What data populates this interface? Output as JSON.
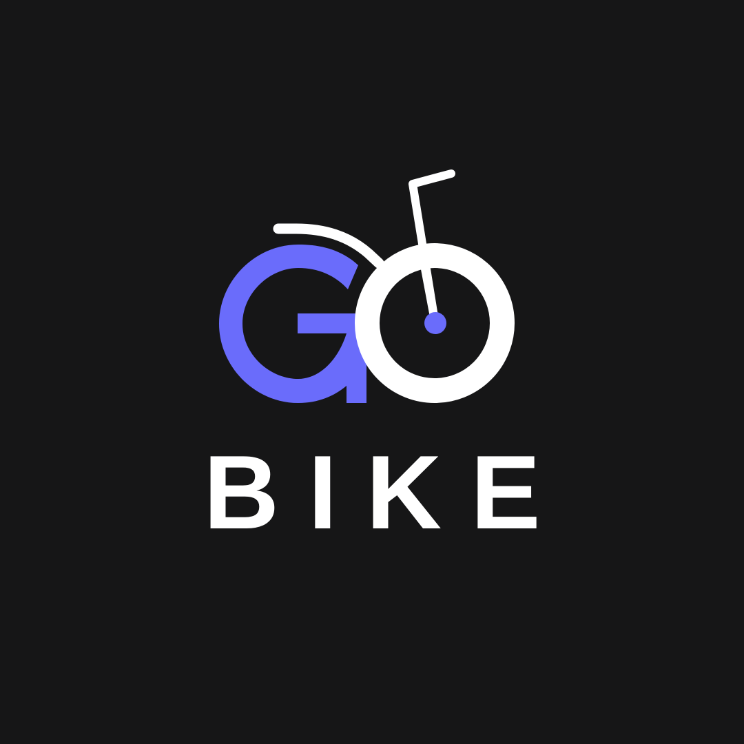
{
  "logo": {
    "mark_text": "GO",
    "wordmark": "BIKE",
    "icon": "bicycle-icon"
  },
  "colors": {
    "background": "#161617",
    "accent": "#6a6cfb",
    "foreground": "#ffffff"
  }
}
